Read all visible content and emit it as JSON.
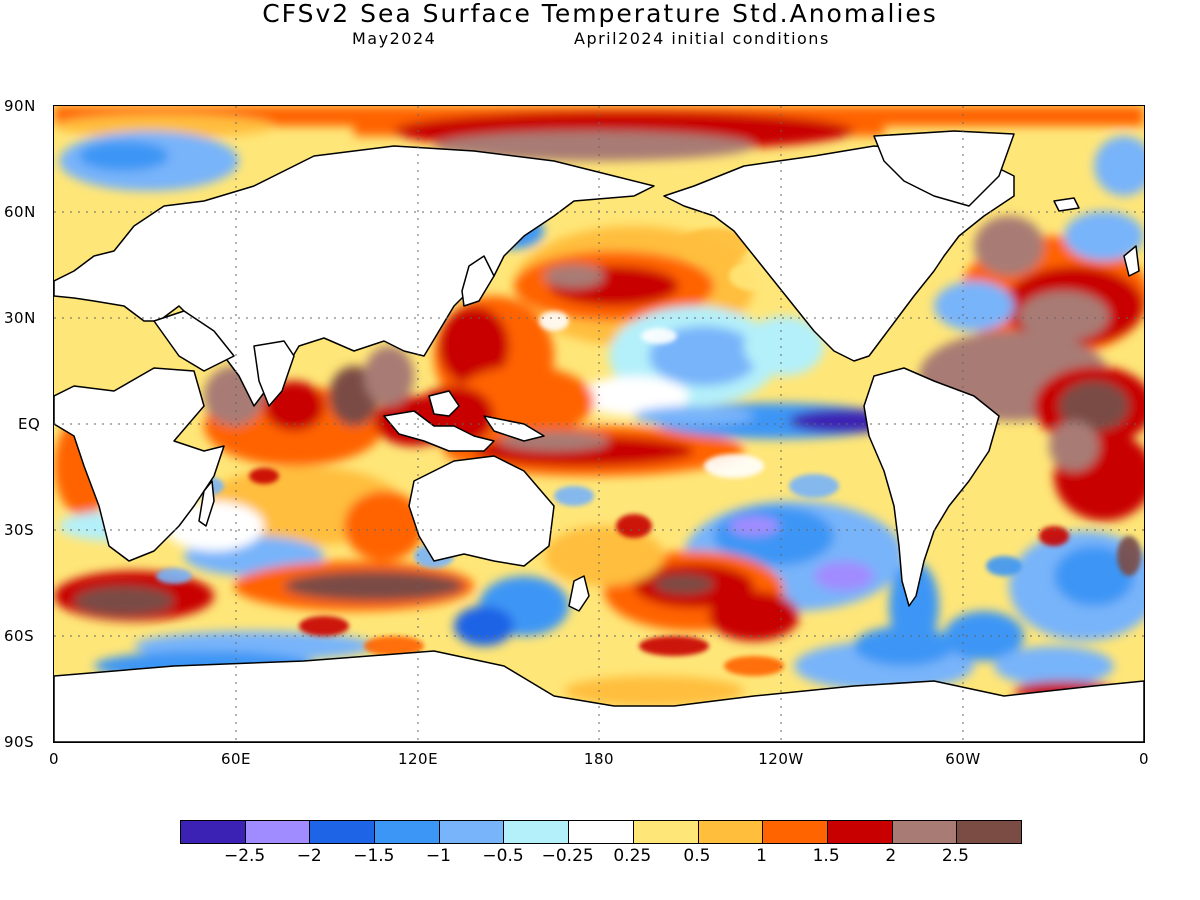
{
  "title": "CFSv2 Sea Surface Temperature Std.Anomalies",
  "subtitle_left": "May2024",
  "subtitle_right": "April2024 initial conditions",
  "lat_labels": [
    "90N",
    "60N",
    "30N",
    "EQ",
    "30S",
    "60S",
    "90S"
  ],
  "lon_labels": [
    "0",
    "60E",
    "120E",
    "180",
    "120W",
    "60W",
    "0"
  ],
  "colorbar": {
    "colors": [
      "#3c22b4",
      "#a08cff",
      "#1e64e6",
      "#3c96f5",
      "#78b4fa",
      "#b4f0fa",
      "#ffffff",
      "#ffe678",
      "#ffbe3c",
      "#ff6400",
      "#c80000",
      "#a87c74",
      "#7a4c44"
    ],
    "labels": [
      "−2.5",
      "−2",
      "−1.5",
      "−1",
      "−0.5",
      "−0.25",
      "0.25",
      "0.5",
      "1",
      "1.5",
      "2",
      "2.5"
    ]
  },
  "map": {
    "projection": "cylindrical equidistant",
    "lon_range": [
      0,
      360
    ],
    "lat_range": [
      -90,
      90
    ],
    "gridlines": "dotted"
  }
}
